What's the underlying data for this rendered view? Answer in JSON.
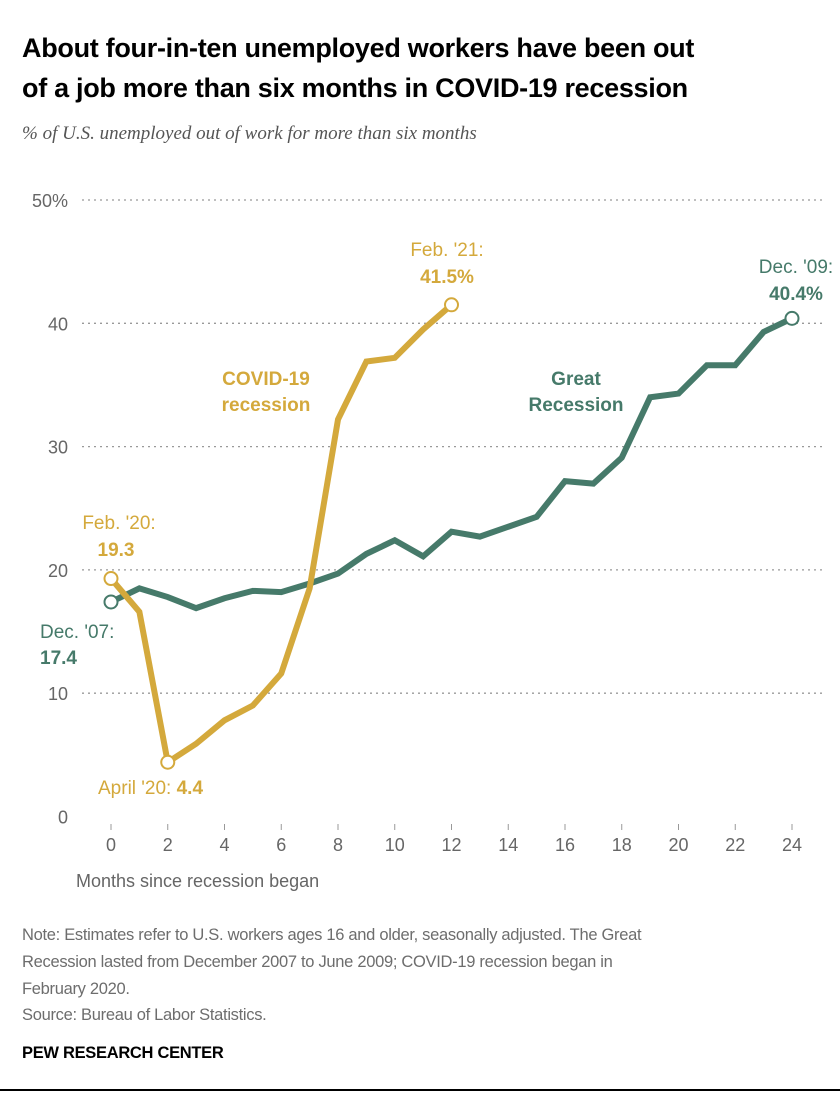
{
  "title_lines": [
    "About four-in-ten unemployed workers have been out",
    "of a job more than six months in COVID-19 recession"
  ],
  "subtitle": "% of U.S. unemployed out of work for more than six months",
  "colors": {
    "covid": "#d4a93c",
    "great_recession": "#467a6a",
    "grid": "#999999"
  },
  "chart_data": {
    "type": "line",
    "xlabel": "Months since recession began",
    "ylabel": "",
    "xlim": [
      0,
      24
    ],
    "ylim": [
      0,
      50
    ],
    "x_ticks": [
      "0",
      "2",
      "4",
      "6",
      "8",
      "10",
      "12",
      "14",
      "16",
      "18",
      "20",
      "22",
      "24"
    ],
    "y_ticks": [
      "0",
      "10",
      "20",
      "30",
      "40",
      "50%"
    ],
    "grid": "horizontal dotted",
    "series": [
      {
        "name": "COVID-19 recession",
        "label_lines": [
          "COVID-19",
          "recession"
        ],
        "color": "#d4a93c",
        "x": [
          0,
          1,
          2,
          3,
          4,
          5,
          6,
          7,
          8,
          9,
          10,
          11,
          12
        ],
        "values": [
          19.3,
          16.6,
          4.4,
          5.9,
          7.8,
          9.0,
          11.6,
          18.5,
          32.2,
          36.9,
          37.2,
          39.5,
          41.5
        ]
      },
      {
        "name": "Great Recession",
        "label_lines": [
          "Great",
          "Recession"
        ],
        "color": "#467a6a",
        "x": [
          0,
          1,
          2,
          3,
          4,
          5,
          6,
          7,
          8,
          9,
          10,
          11,
          12,
          13,
          14,
          15,
          16,
          17,
          18,
          19,
          20,
          21,
          22,
          23,
          24
        ],
        "values": [
          17.4,
          18.5,
          17.8,
          16.9,
          17.7,
          18.3,
          18.2,
          18.9,
          19.7,
          21.3,
          22.4,
          21.1,
          23.1,
          22.7,
          23.5,
          24.3,
          27.2,
          27.0,
          29.1,
          34.0,
          34.3,
          36.6,
          36.6,
          39.3,
          40.4
        ]
      }
    ],
    "annotations": {
      "covid_start": {
        "label": "Feb. '20:",
        "value": "19.3"
      },
      "covid_low": {
        "label": "April '20: ",
        "value": "4.4"
      },
      "covid_end": {
        "label": "Feb. '21:",
        "value": "41.5%"
      },
      "gr_start": {
        "label": "Dec. '07:",
        "value": "17.4"
      },
      "gr_end": {
        "label": "Dec. '09:",
        "value": "40.4%"
      }
    }
  },
  "notes": [
    "Note: Estimates refer to U.S. workers ages 16 and older, seasonally adjusted. The Great",
    "Recession lasted from December 2007 to June 2009; COVID-19 recession began in",
    "February 2020.",
    "Source: Bureau of Labor Statistics."
  ],
  "brand": "PEW RESEARCH CENTER"
}
